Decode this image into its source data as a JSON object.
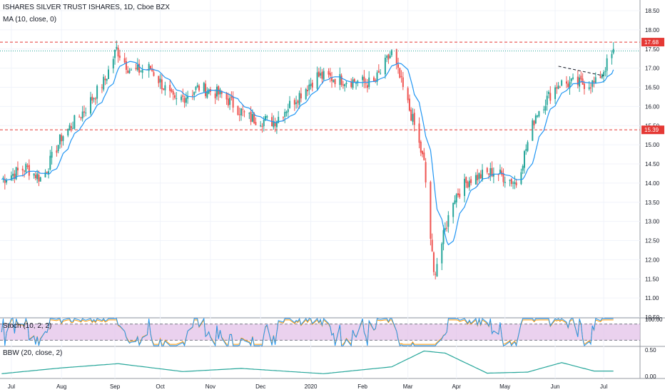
{
  "header": {
    "title": "ISHARES SILVER TRUST ISHARES, 1D, Cboe BZX",
    "ma_label": "MA (10, close, 0)",
    "stoch_label": "Stoch (10, 2, 2)",
    "bbw_label": "BBW (20, close, 2)"
  },
  "colors": {
    "up": "#26a69a",
    "down": "#ef5350",
    "ma": "#2196f3",
    "level": "#e53935",
    "cyan_level": "#26a69a",
    "stoch_k": "#2196f3",
    "stoch_d": "#ff9800",
    "stoch_band": "#e1bee7",
    "bbw": "#26a69a"
  },
  "chart_data": {
    "type": "candlestick",
    "title": "ISHARES SILVER TRUST ISHARES, 1D, Cboe BZX",
    "x_tick_labels": [
      "Jul",
      "Aug",
      "Sep",
      "Oct",
      "Nov",
      "Dec",
      "2020",
      "Feb",
      "Mar",
      "Apr",
      "May",
      "Jun",
      "Jul"
    ],
    "y_tick_labels": [
      "18.50",
      "18.00",
      "17.50",
      "17.00",
      "16.50",
      "16.00",
      "15.50",
      "15.00",
      "14.50",
      "14.00",
      "13.50",
      "13.00",
      "12.50",
      "12.00",
      "11.50",
      "11.00",
      "10.50"
    ],
    "ylim": [
      10.5,
      18.5
    ],
    "horizontal_levels": [
      {
        "label": "17.68",
        "value": 17.68,
        "style": "dashed",
        "color": "#e53935"
      },
      {
        "label": "15.39",
        "value": 15.39,
        "style": "dashed",
        "color": "#e53935"
      },
      {
        "value": 17.45,
        "style": "dotted",
        "color": "#26a69a"
      }
    ],
    "price_anchors": {
      "x": [
        "2019-06-25",
        "2019-07-10",
        "2019-07-20",
        "2019-08-01",
        "2019-08-15",
        "2019-08-28",
        "2019-09-04",
        "2019-09-13",
        "2019-09-25",
        "2019-10-10",
        "2019-10-25",
        "2019-11-08",
        "2019-11-25",
        "2019-12-10",
        "2020-01-06",
        "2020-01-22",
        "2020-02-10",
        "2020-02-21",
        "2020-02-27",
        "2020-03-06",
        "2020-03-12",
        "2020-03-18",
        "2020-03-30",
        "2020-04-09",
        "2020-04-24",
        "2020-05-08",
        "2020-05-20",
        "2020-06-03",
        "2020-06-18",
        "2020-06-26",
        "2020-07-07"
      ],
      "close": [
        14.1,
        14.4,
        14.1,
        15.2,
        15.9,
        16.7,
        17.5,
        16.9,
        17.0,
        16.1,
        16.5,
        16.3,
        15.7,
        15.6,
        16.8,
        16.7,
        16.6,
        17.4,
        16.6,
        15.5,
        14.5,
        11.6,
        13.6,
        14.1,
        14.3,
        14.0,
        15.8,
        16.6,
        16.6,
        16.6,
        17.4
      ]
    },
    "annotations": [
      {
        "type": "dashed-trendline",
        "color": "#131722",
        "points": [
          [
            "2020-06-03",
            17.05
          ],
          [
            "2020-07-01",
            16.8
          ]
        ]
      }
    ],
    "indicators": [
      {
        "name": "MA (10, close, 0)",
        "type": "line",
        "pane": "price"
      },
      {
        "name": "Stoch (10, 2, 2)",
        "type": "line",
        "pane": "stoch",
        "y_tick_labels": [
          "100.00"
        ],
        "band": [
          20,
          80
        ]
      },
      {
        "name": "BBW (20, close, 2)",
        "type": "line",
        "pane": "bbw",
        "y_tick_labels": [
          "0.50",
          "0.00"
        ],
        "anchors": {
          "x": [
            "2019-06-25",
            "2019-08-01",
            "2019-09-05",
            "2019-10-15",
            "2019-11-20",
            "2020-01-10",
            "2020-02-21",
            "2020-03-12",
            "2020-03-25",
            "2020-04-20",
            "2020-05-15",
            "2020-06-05",
            "2020-06-25",
            "2020-07-07"
          ],
          "y": [
            0.05,
            0.16,
            0.24,
            0.09,
            0.15,
            0.05,
            0.18,
            0.48,
            0.44,
            0.06,
            0.08,
            0.26,
            0.1,
            0.1
          ]
        }
      }
    ]
  }
}
